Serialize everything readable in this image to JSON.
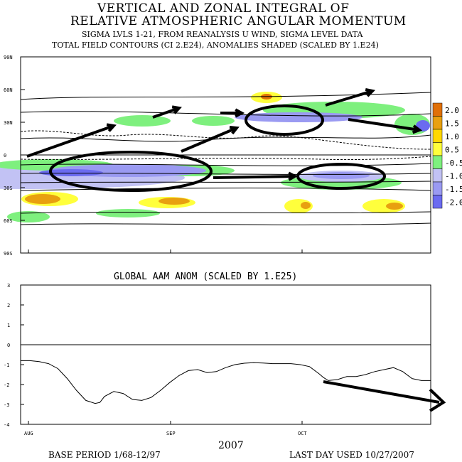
{
  "title_line1": "VERTICAL AND ZONAL INTEGRAL OF",
  "title_line2": "RELATIVE ATMOSPHERIC ANGULAR MOMENTUM",
  "subtitle1": "SIGMA LVLS 1-21, FROM REANALYSIS U WIND, SIGMA LEVEL DATA",
  "subtitle2": "TOTAL FIELD CONTOURS (CI 2.E24),  ANOMALIES SHADED (SCALED BY 1.E24)",
  "footer": {
    "year": "2007",
    "base_period": "BASE PERIOD  1/68-12/97",
    "last_day": "LAST DAY USED 10/27/2007"
  },
  "colors": {
    "neg2": "#6b6bf0",
    "neg15": "#9a9af2",
    "neg1": "#c2c2f4",
    "neg05": "#7ef07e",
    "pos05": "#ffff3c",
    "pos1": "#ffd800",
    "pos15": "#e8a010",
    "pos2": "#e07008"
  },
  "chart_data": [
    {
      "type": "heatmap",
      "title": "",
      "y_ticks": [
        "90N",
        "60N",
        "30N",
        "0",
        "30S",
        "60S",
        "90S"
      ],
      "x_ticks": [
        "AUG",
        "SEP",
        "OCT"
      ],
      "color_scale": {
        "labels": [
          "2.0",
          "1.5",
          "1.0",
          "0.5",
          "-0.5",
          "-1.0",
          "-1.5",
          "-2.0"
        ],
        "colors": [
          "#e07008",
          "#e8a010",
          "#ffd800",
          "#ffff3c",
          "#7ef07e",
          "#c2c2f4",
          "#9a9af2",
          "#6b6bf0"
        ]
      }
    },
    {
      "type": "line",
      "title": "GLOBAL AAM ANOM (SCALED BY 1.E25)",
      "x_ticks": [
        "AUG",
        "SEP",
        "OCT"
      ],
      "y_ticks": [
        "3",
        "2",
        "1",
        "0",
        "-1",
        "-2",
        "-3",
        "-4"
      ],
      "ylim": [
        -4,
        3
      ],
      "xlim": [
        0,
        88
      ],
      "series": [
        {
          "x": [
            0,
            2,
            4,
            6,
            8,
            10,
            12,
            14,
            16,
            17,
            18,
            20,
            22,
            24,
            26,
            28,
            30,
            32,
            34,
            36,
            38,
            40,
            42,
            44,
            46,
            48,
            50,
            52,
            54,
            56,
            58,
            60,
            62,
            64,
            65,
            66,
            68,
            70,
            72,
            74,
            76,
            78,
            80,
            82,
            84,
            86,
            88
          ],
          "values": [
            -0.8,
            -0.8,
            -0.85,
            -0.95,
            -1.2,
            -1.7,
            -2.3,
            -2.8,
            -2.95,
            -2.9,
            -2.6,
            -2.35,
            -2.45,
            -2.75,
            -2.8,
            -2.65,
            -2.3,
            -1.9,
            -1.55,
            -1.3,
            -1.25,
            -1.4,
            -1.35,
            -1.15,
            -1.0,
            -0.93,
            -0.9,
            -0.92,
            -0.95,
            -0.95,
            -0.95,
            -1.0,
            -1.1,
            -1.45,
            -1.65,
            -1.8,
            -1.75,
            -1.6,
            -1.6,
            -1.5,
            -1.35,
            -1.25,
            -1.15,
            -1.35,
            -1.7,
            -1.8,
            -1.8
          ]
        }
      ]
    }
  ]
}
